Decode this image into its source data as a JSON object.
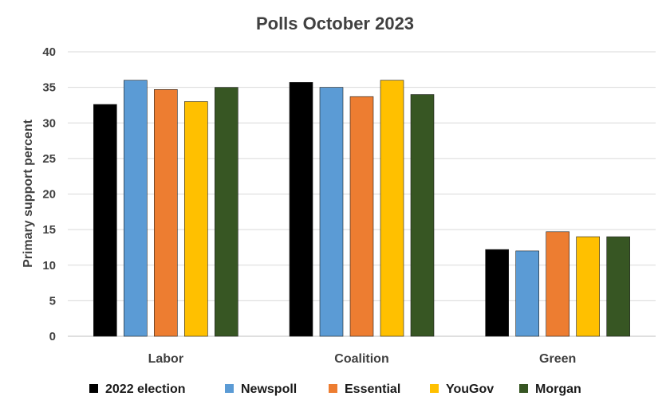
{
  "chart_data": {
    "type": "bar",
    "title": "Polls   October 2023",
    "xlabel": "",
    "ylabel": "Primary support percent",
    "ylim": [
      0,
      40
    ],
    "yticks": [
      0,
      5,
      10,
      15,
      20,
      25,
      30,
      35,
      40
    ],
    "grid": true,
    "legend_position": "bottom",
    "categories": [
      "Labor",
      "Coalition",
      "Green"
    ],
    "series": [
      {
        "name": "2022 election",
        "color": "#000000",
        "values": [
          32.6,
          35.7,
          12.2
        ]
      },
      {
        "name": "Newspoll",
        "color": "#5b9bd5",
        "values": [
          36,
          35,
          12
        ]
      },
      {
        "name": "Essential",
        "color": "#ed7d31",
        "values": [
          34.7,
          33.7,
          14.7
        ]
      },
      {
        "name": "YouGov",
        "color": "#ffc000",
        "values": [
          33,
          36,
          14
        ]
      },
      {
        "name": "Morgan",
        "color": "#375623",
        "values": [
          35,
          34,
          14
        ]
      }
    ]
  }
}
